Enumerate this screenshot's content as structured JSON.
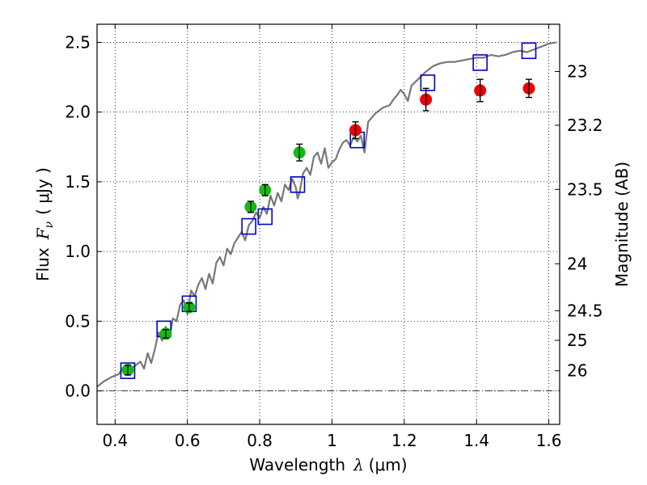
{
  "chart_data": {
    "type": "scatter",
    "xlabel_text": "Wavelength",
    "xlabel_symbol": "λ",
    "xlabel_unit": "(μm)",
    "ylabel_text": "Flux",
    "ylabel_symbol": "F",
    "ylabel_sub": "ν",
    "ylabel_unit": "( μJy )",
    "y2label": "Magnitude (AB)",
    "xlim": [
      0.35,
      1.63
    ],
    "ylim": [
      -0.24,
      2.63
    ],
    "grid": true,
    "x_ticks": [
      0.4,
      0.6,
      0.8,
      1.0,
      1.2,
      1.4,
      1.6
    ],
    "x_tick_labels": [
      "0.4",
      "0.6",
      "0.8",
      "1",
      "1.2",
      "1.4",
      "1.6"
    ],
    "y_ticks": [
      0.0,
      0.5,
      1.0,
      1.5,
      2.0,
      2.5
    ],
    "y_tick_labels": [
      "0.0",
      "0.5",
      "1.0",
      "1.5",
      "2.0",
      "2.5"
    ],
    "mag_ticks": [
      23,
      23.2,
      23.5,
      24,
      24.5,
      25,
      26
    ],
    "mag_tick_labels": [
      "23",
      "23.2",
      "23.5",
      "24",
      "24.5",
      "25",
      "26"
    ],
    "zero_line": true,
    "colors": {
      "green": "#11bb11",
      "red": "#ee0000",
      "model": "#777777",
      "box": "#0000cc"
    },
    "series": [
      {
        "name": "green_points",
        "color": "#11bb11",
        "points": [
          {
            "x": 0.435,
            "y": 0.15,
            "err": 0.035
          },
          {
            "x": 0.54,
            "y": 0.41,
            "err": 0.03
          },
          {
            "x": 0.605,
            "y": 0.6,
            "err": 0.03
          },
          {
            "x": 0.775,
            "y": 1.32,
            "err": 0.04
          },
          {
            "x": 0.815,
            "y": 1.44,
            "err": 0.04
          },
          {
            "x": 0.91,
            "y": 1.71,
            "err": 0.06
          }
        ]
      },
      {
        "name": "red_points",
        "color": "#ee0000",
        "points": [
          {
            "x": 1.065,
            "y": 1.87,
            "err": 0.06
          },
          {
            "x": 1.26,
            "y": 2.09,
            "err": 0.08
          },
          {
            "x": 1.41,
            "y": 2.155,
            "err": 0.08
          },
          {
            "x": 1.545,
            "y": 2.17,
            "err": 0.065
          }
        ]
      },
      {
        "name": "model_boxes",
        "color": "#0000cc",
        "points": [
          {
            "x": 0.435,
            "y": 0.145
          },
          {
            "x": 0.535,
            "y": 0.445
          },
          {
            "x": 0.605,
            "y": 0.625
          },
          {
            "x": 0.77,
            "y": 1.18
          },
          {
            "x": 0.815,
            "y": 1.25
          },
          {
            "x": 0.905,
            "y": 1.48
          },
          {
            "x": 1.07,
            "y": 1.8
          },
          {
            "x": 1.265,
            "y": 2.21
          },
          {
            "x": 1.41,
            "y": 2.355
          },
          {
            "x": 1.545,
            "y": 2.44
          }
        ]
      },
      {
        "name": "model_spectrum",
        "color": "#777777",
        "x": [
          0.35,
          0.37,
          0.39,
          0.41,
          0.42,
          0.43,
          0.45,
          0.47,
          0.48,
          0.49,
          0.5,
          0.51,
          0.52,
          0.53,
          0.54,
          0.55,
          0.56,
          0.57,
          0.58,
          0.59,
          0.6,
          0.61,
          0.62,
          0.63,
          0.64,
          0.65,
          0.66,
          0.67,
          0.68,
          0.69,
          0.7,
          0.71,
          0.72,
          0.73,
          0.74,
          0.75,
          0.76,
          0.77,
          0.78,
          0.79,
          0.8,
          0.81,
          0.82,
          0.83,
          0.84,
          0.85,
          0.86,
          0.87,
          0.88,
          0.89,
          0.9,
          0.905,
          0.91,
          0.92,
          0.93,
          0.94,
          0.95,
          0.96,
          0.97,
          0.98,
          0.99,
          1.0,
          1.01,
          1.02,
          1.03,
          1.04,
          1.05,
          1.06,
          1.07,
          1.08,
          1.09,
          1.1,
          1.12,
          1.14,
          1.16,
          1.17,
          1.18,
          1.19,
          1.2,
          1.21,
          1.22,
          1.24,
          1.26,
          1.28,
          1.3,
          1.32,
          1.34,
          1.36,
          1.38,
          1.4,
          1.42,
          1.44,
          1.46,
          1.48,
          1.5,
          1.52,
          1.54,
          1.56,
          1.58,
          1.6,
          1.62
        ],
        "y": [
          0.03,
          0.07,
          0.1,
          0.12,
          0.16,
          0.14,
          0.17,
          0.21,
          0.16,
          0.27,
          0.2,
          0.3,
          0.42,
          0.36,
          0.46,
          0.38,
          0.52,
          0.5,
          0.62,
          0.65,
          0.55,
          0.72,
          0.68,
          0.76,
          0.81,
          0.73,
          0.84,
          0.77,
          0.92,
          0.96,
          0.9,
          1.02,
          0.98,
          1.06,
          1.1,
          1.14,
          1.08,
          1.19,
          1.22,
          1.28,
          1.24,
          1.32,
          1.27,
          1.4,
          1.33,
          1.42,
          1.36,
          1.48,
          1.44,
          1.52,
          1.46,
          1.38,
          1.42,
          1.56,
          1.6,
          1.55,
          1.68,
          1.71,
          1.63,
          1.74,
          1.6,
          1.64,
          1.66,
          1.73,
          1.78,
          1.8,
          1.76,
          1.82,
          1.79,
          1.83,
          1.71,
          1.93,
          1.99,
          2.03,
          2.05,
          2.09,
          2.12,
          2.16,
          2.13,
          2.08,
          2.19,
          2.24,
          2.29,
          2.33,
          2.35,
          2.36,
          2.36,
          2.37,
          2.38,
          2.39,
          2.39,
          2.41,
          2.4,
          2.41,
          2.43,
          2.44,
          2.43,
          2.45,
          2.47,
          2.49,
          2.5
        ]
      }
    ]
  }
}
